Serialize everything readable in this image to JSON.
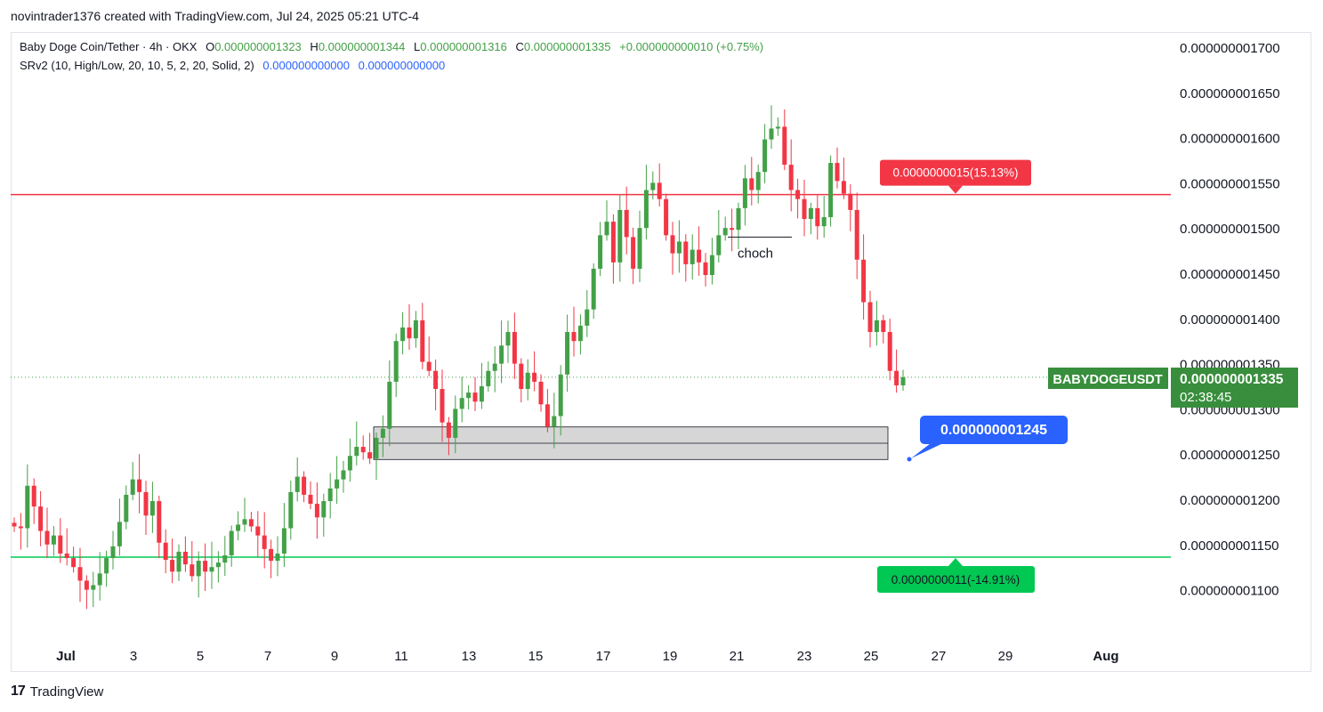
{
  "header": {
    "created_line": "novintrader1376 created with TradingView.com, Jul 24, 2025 05:21 UTC-4"
  },
  "legend": {
    "symbol": "Baby Doge Coin/Tether · 4h · OKX",
    "o_label": "O",
    "o_value": "0.000000001323",
    "h_label": "H",
    "h_value": "0.000000001344",
    "l_label": "L",
    "l_value": "0.000000001316",
    "c_label": "C",
    "c_value": "0.000000001335",
    "change": "+0.000000000010 (+0.75%)",
    "indicator": "SRv2 (10, High/Low, 20, 10, 5, 2, 20, Solid, 2)",
    "ind_v1": "0.000000000000",
    "ind_v2": "0.000000000000"
  },
  "footer": {
    "brand": "TradingView",
    "logo_text": "17"
  },
  "colors": {
    "up": "#43a047",
    "down": "#f23645",
    "resistance": "#f23645",
    "support": "#00c853",
    "target_blue": "#2962ff",
    "price_tag": "#388e3c"
  },
  "chart_data": {
    "type": "candlestick",
    "ylim": [
      1.06e-09,
      1.73e-09
    ],
    "y_ticks": [
      "0.000000001700",
      "0.000000001650",
      "0.000000001600",
      "0.000000001550",
      "0.000000001500",
      "0.000000001450",
      "0.000000001400",
      "0.000000001350",
      "0.000000001300",
      "0.000000001250",
      "0.000000001200",
      "0.000000001150",
      "0.000000001100"
    ],
    "x_ticks": [
      "Jul",
      "3",
      "5",
      "7",
      "9",
      "11",
      "13",
      "15",
      "17",
      "19",
      "21",
      "23",
      "25",
      "27",
      "29",
      "Aug"
    ],
    "symbol_tag": "BABYDOGEUSDT",
    "last_price": "0.000000001335",
    "countdown": "02:38:45",
    "resistance": {
      "value": 1.537e-09,
      "label": "0.0000000015(15.13%)"
    },
    "support": {
      "value": 1.136e-09,
      "label": "0.0000000011(-14.91%)"
    },
    "target": {
      "value": 1.245e-09,
      "label": "0.000000001245"
    },
    "demand_zone": {
      "top": 1.28e-09,
      "mid": 1.262e-09,
      "bottom": 1.244e-09
    },
    "annotation": {
      "text": "choch",
      "level": 1.49e-09
    },
    "closes": [
      1.17,
      1.168,
      1.215,
      1.192,
      1.165,
      1.15,
      1.16,
      1.14,
      1.135,
      1.125,
      1.11,
      1.1,
      1.105,
      1.118,
      1.135,
      1.148,
      1.175,
      1.205,
      1.222,
      1.208,
      1.182,
      1.198,
      1.152,
      1.133,
      1.12,
      1.142,
      1.128,
      1.115,
      1.132,
      1.12,
      1.125,
      1.13,
      1.138,
      1.165,
      1.172,
      1.178,
      1.17,
      1.16,
      1.145,
      1.132,
      1.14,
      1.168,
      1.208,
      1.225,
      1.205,
      1.195,
      1.18,
      1.198,
      1.212,
      1.222,
      1.232,
      1.248,
      1.258,
      1.252,
      1.245,
      1.268,
      1.278,
      1.33,
      1.375,
      1.39,
      1.378,
      1.398,
      1.352,
      1.342,
      1.322,
      1.285,
      1.268,
      1.3,
      1.312,
      1.318,
      1.308,
      1.325,
      1.342,
      1.35,
      1.37,
      1.385,
      1.35,
      1.322,
      1.34,
      1.33,
      1.305,
      1.28,
      1.292,
      1.338,
      1.385,
      1.375,
      1.392,
      1.41,
      1.455,
      1.492,
      1.507,
      1.462,
      1.52,
      1.49,
      1.455,
      1.5,
      1.542,
      1.55,
      1.532,
      1.492,
      1.472,
      1.485,
      1.46,
      1.476,
      1.462,
      1.448,
      1.47,
      1.492,
      1.5,
      1.498,
      1.522,
      1.555,
      1.542,
      1.562,
      1.598,
      1.61,
      1.612,
      1.57,
      1.542,
      1.532,
      1.51,
      1.522,
      1.502,
      1.512,
      1.572,
      1.552,
      1.538,
      1.52,
      1.465,
      1.418,
      1.385,
      1.398,
      1.385,
      1.342,
      1.326,
      1.335
    ]
  }
}
